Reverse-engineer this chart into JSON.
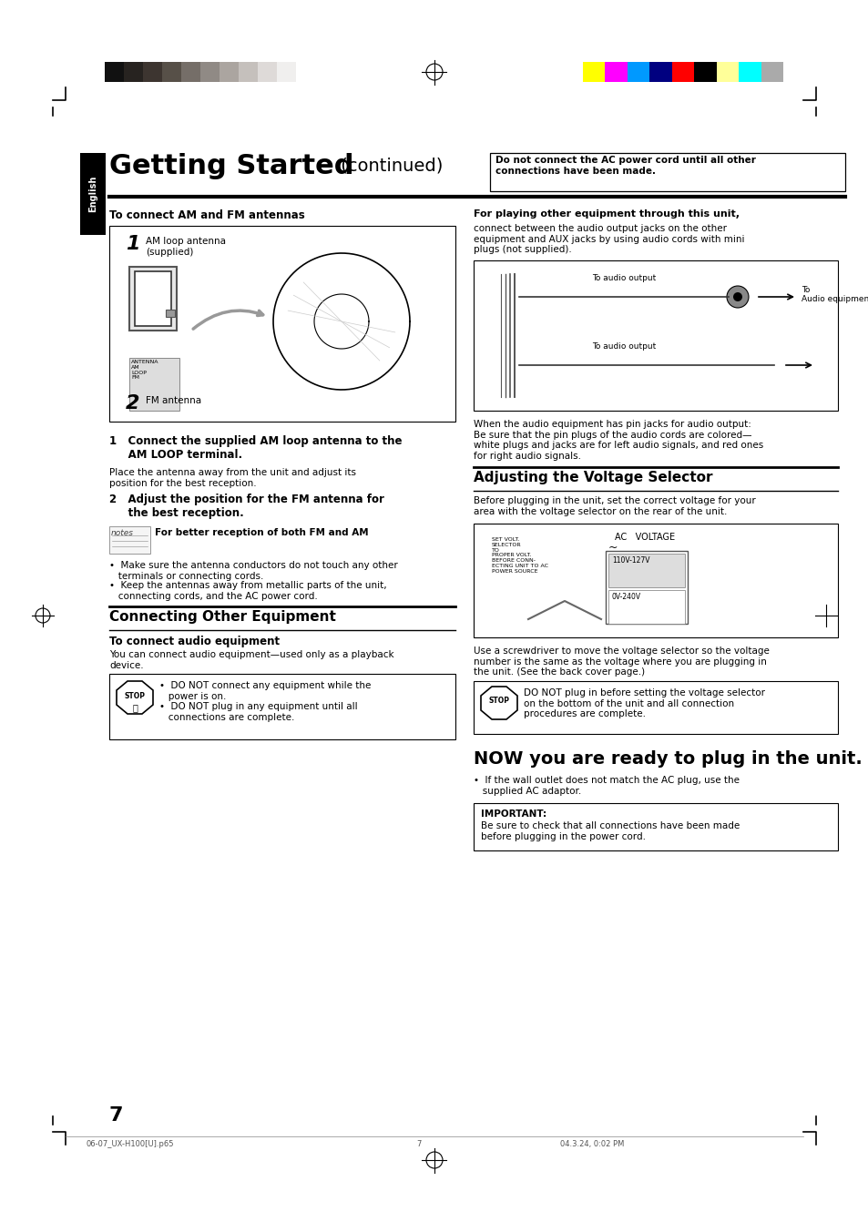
{
  "page_bg": "#ffffff",
  "title_bold": "Getting Started",
  "title_normal": " (continued)",
  "warning_text": "Do not connect the AC power cord until all other\nconnections have been made.",
  "eng_label": "English",
  "ant_section": "To connect AM and FM antennas",
  "step1_num": "1",
  "step1_label": "AM loop antenna\n(supplied)",
  "step2_num": "2",
  "step2_label": "FM antenna",
  "instr1_bold": "1   Connect the supplied AM loop antenna to the\n     AM LOOP terminal.",
  "instr1_body": "Place the antenna away from the unit and adjust its\nposition for the best reception.",
  "instr2_bold": "2   Adjust the position for the FM antenna for\n     the best reception.",
  "notes_header": "For better reception of both FM and AM",
  "notes_b1": "•  Make sure the antenna conductors do not touch any other\n   terminals or connecting cords.",
  "notes_b2": "•  Keep the antennas away from metallic parts of the unit,\n   connecting cords, and the AC power cord.",
  "conn_title": "Connecting Other Equipment",
  "conn_sub": "To connect audio equipment",
  "conn_body": "You can connect audio equipment—used only as a playback\ndevice.",
  "stop1_text": "•  DO NOT connect any equipment while the\n   power is on.\n•  DO NOT plug in any equipment until all\n   connections are complete.",
  "play_bold": "For playing other equipment through this unit,",
  "play_body": "connect between the audio output jacks on the other\nequipment and AUX jacks by using audio cords with mini\nplugs (not supplied).",
  "audio_cap1": "To audio output",
  "audio_cap2": "To\nAudio equipment",
  "audio_cap3": "To audio output",
  "audio_note": "When the audio equipment has pin jacks for audio output:\nBe sure that the pin plugs of the audio cords are colored—\nwhite plugs and jacks are for left audio signals, and red ones\nfor right audio signals.",
  "volt_title": "Adjusting the Voltage Selector",
  "volt_body": "Before plugging in the unit, set the correct voltage for your\narea with the voltage selector on the rear of the unit.",
  "volt_ac": "AC   VOLTAGE",
  "volt_tilde": "~",
  "volt_110": "110V-127V",
  "volt_220": "0V-240V",
  "volt_warning": "SET VOLT.\nSELECTOR\nTO\nPROPER VOLT.\nBEFORE CONN-\nECTING UNIT TO AC\nPOWER SOURCE",
  "volt_note": "Use a screwdriver to move the voltage selector so the voltage\nnumber is the same as the voltage where you are plugging in\nthe unit. (See the back cover page.)",
  "stop2_text": "DO NOT plug in before setting the voltage selector\non the bottom of the unit and all connection\nprocedures are complete.",
  "now_title": "NOW you are ready to plug in the unit.",
  "now_body": "•  If the wall outlet does not match the AC plug, use the\n   supplied AC adaptor.",
  "imp_label": "IMPORTANT:",
  "imp_body": "Be sure to check that all connections have been made\nbefore plugging in the power cord.",
  "page_num": "7",
  "foot_left": "06-07_UX-H100[U].p65",
  "foot_mid": "7",
  "foot_right": "04.3.24, 0:02 PM",
  "gray_bar": [
    "#111111",
    "#272320",
    "#3d3530",
    "#575048",
    "#756e68",
    "#908a85",
    "#aba5a0",
    "#c5c0bc",
    "#dedad8",
    "#f0efee"
  ],
  "color_bar": [
    "#ffff00",
    "#ff00ff",
    "#0099ff",
    "#000080",
    "#ff0000",
    "#000000",
    "#ffff99",
    "#00ffff",
    "#aaaaaa"
  ]
}
